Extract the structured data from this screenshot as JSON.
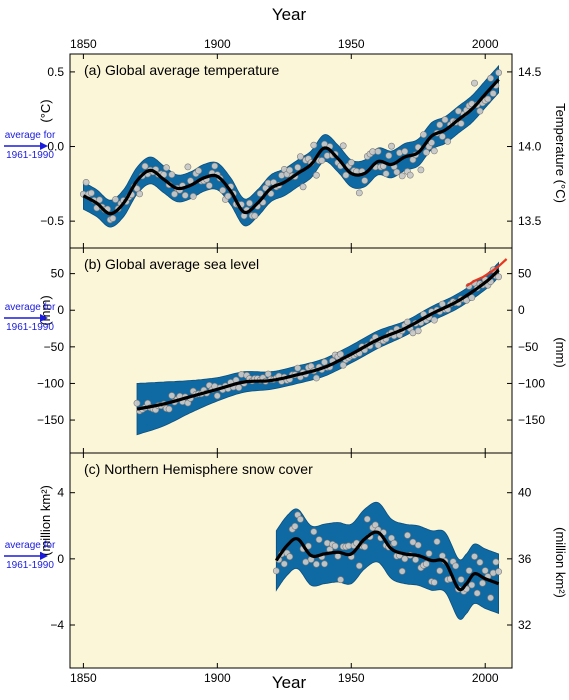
{
  "x_axis": {
    "title": "Year",
    "ticks": [
      "1850",
      "1900",
      "1950",
      "2000"
    ],
    "tick_values": [
      1850,
      1900,
      1950,
      2000
    ],
    "range": [
      1845,
      2010
    ]
  },
  "reference_note": {
    "line1": "average for",
    "line2": "1961-1990"
  },
  "colors": {
    "panel_bg": "#fbf6d8",
    "band": "#0f6aa3",
    "band_edge": "#0a4f80",
    "obs_point_fill": "#c8c8c8",
    "obs_point_stroke": "#7a7a7a",
    "smooth_line": "#000000",
    "satellite_line": "#e8351e",
    "arrow": "#1a1adc"
  },
  "chart_data": [
    {
      "type": "line",
      "id": "temperature",
      "title": "(a) Global average temperature",
      "ylabel": "(°C)",
      "ylabel_right": "Temperature (°C)",
      "ylim": [
        -0.68,
        0.62
      ],
      "yticks": [
        -0.5,
        0.0,
        0.5
      ],
      "ytick_labels": [
        "−0.5",
        "0.0",
        "0.5"
      ],
      "right_ticks": [
        13.5,
        14.0,
        14.5
      ],
      "right_tick_labels": [
        "13.5",
        "14.0",
        "14.5"
      ],
      "right_offset": 14.0,
      "x": [
        1850,
        1855,
        1860,
        1865,
        1870,
        1875,
        1880,
        1885,
        1890,
        1895,
        1900,
        1905,
        1910,
        1915,
        1920,
        1925,
        1930,
        1935,
        1940,
        1945,
        1950,
        1955,
        1960,
        1965,
        1970,
        1975,
        1980,
        1985,
        1990,
        1995,
        2000,
        2005
      ],
      "smooth": [
        -0.33,
        -0.38,
        -0.45,
        -0.38,
        -0.23,
        -0.16,
        -0.22,
        -0.28,
        -0.26,
        -0.21,
        -0.2,
        -0.3,
        -0.44,
        -0.38,
        -0.28,
        -0.24,
        -0.18,
        -0.12,
        -0.01,
        -0.08,
        -0.18,
        -0.18,
        -0.1,
        -0.12,
        -0.07,
        -0.04,
        0.07,
        0.11,
        0.18,
        0.25,
        0.35,
        0.45
      ],
      "band_half_width": 0.09
    },
    {
      "type": "line",
      "id": "sea_level",
      "title": "(b) Global average sea level",
      "ylabel": "(mm)",
      "ylabel_right": "(mm)",
      "ylim": [
        -195,
        85
      ],
      "yticks": [
        -150,
        -100,
        -50,
        0,
        50
      ],
      "ytick_labels": [
        "−150",
        "−100",
        "−50",
        "0",
        "50"
      ],
      "right_ticks": [
        -150,
        -100,
        -50,
        0,
        50
      ],
      "right_tick_labels": [
        "−150",
        "−100",
        "−50",
        "0",
        "50"
      ],
      "right_offset": 0,
      "x": [
        1870,
        1880,
        1890,
        1900,
        1910,
        1920,
        1930,
        1940,
        1950,
        1960,
        1970,
        1980,
        1990,
        2000,
        2005
      ],
      "smooth": [
        -135,
        -128,
        -118,
        -108,
        -98,
        -96,
        -88,
        -78,
        -60,
        -40,
        -25,
        -5,
        13,
        38,
        55
      ],
      "band_half_width": [
        35,
        30,
        22,
        16,
        14,
        12,
        12,
        12,
        12,
        12,
        10,
        10,
        10,
        10,
        10
      ],
      "satellite": {
        "x": [
          1993,
          1996,
          1999,
          2002,
          2005,
          2008
        ],
        "y": [
          33,
          40,
          45,
          52,
          60,
          70
        ]
      }
    },
    {
      "type": "line",
      "id": "snow_cover",
      "title": "(c) Northern Hemisphere snow cover",
      "ylabel": "(million km²)",
      "ylabel_right": "(million km²)",
      "ylim": [
        -6.6,
        6.4
      ],
      "yticks": [
        -4,
        0,
        4
      ],
      "ytick_labels": [
        "−4",
        "0",
        "4"
      ],
      "right_ticks": [
        32,
        36,
        40
      ],
      "right_tick_labels": [
        "32",
        "36",
        "40"
      ],
      "right_offset": 36,
      "x": [
        1922,
        1926,
        1930,
        1935,
        1940,
        1945,
        1950,
        1955,
        1960,
        1965,
        1970,
        1975,
        1980,
        1985,
        1990,
        1993,
        1996,
        2000,
        2005
      ],
      "smooth": [
        -0.1,
        0.8,
        1.2,
        0.2,
        0.3,
        0.4,
        0.3,
        1.2,
        1.6,
        0.6,
        0.3,
        0.2,
        -0.1,
        -0.2,
        -1.8,
        -1.5,
        -0.9,
        -1.2,
        -1.5
      ],
      "band_half_width": 1.8
    }
  ]
}
